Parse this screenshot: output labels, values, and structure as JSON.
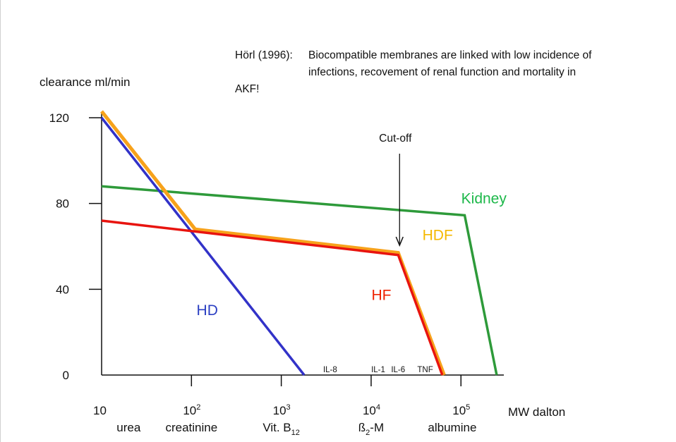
{
  "chart_data": {
    "type": "line",
    "ylabel": "clearance ml/min",
    "xlabel": "MW dalton",
    "annotation": {
      "line1_lead": "Hörl (1996):",
      "line1_text": "Biocompatible membranes are linked with low incidence of",
      "line2_text": "infections, recovement of renal function and mortality in",
      "line3_text": "AKF!"
    },
    "cutoff_label": "Cut-off",
    "x_scale": "log",
    "xlim": [
      10,
      300000
    ],
    "ylim": [
      0,
      120
    ],
    "y_ticks": [
      {
        "value": 120,
        "label": "120"
      },
      {
        "value": 80,
        "label": "80"
      },
      {
        "value": 40,
        "label": "40"
      },
      {
        "value": 0,
        "label": "0"
      }
    ],
    "x_ticks": [
      {
        "value": 10,
        "base": "10",
        "exp": ""
      },
      {
        "value": 100,
        "base": "10",
        "exp": "2"
      },
      {
        "value": 1000,
        "base": "10",
        "exp": "3"
      },
      {
        "value": 10000,
        "base": "10",
        "exp": "4"
      },
      {
        "value": 100000,
        "base": "10",
        "exp": "5"
      }
    ],
    "molecules": [
      {
        "x": 20,
        "label": "urea",
        "sub": "",
        "suffix": ""
      },
      {
        "x": 100,
        "label": "creatinine",
        "sub": "",
        "suffix": ""
      },
      {
        "x": 1000,
        "label": "Vit. B",
        "sub": "12",
        "suffix": ""
      },
      {
        "x": 10000,
        "label": "ß",
        "sub": "2",
        "suffix": "-M"
      },
      {
        "x": 80000,
        "label": "albumine",
        "sub": "",
        "suffix": ""
      }
    ],
    "cytokines": [
      {
        "x": 3500,
        "label": "IL-8"
      },
      {
        "x": 12000,
        "label": "IL-1"
      },
      {
        "x": 20000,
        "label": "IL-6"
      },
      {
        "x": 40000,
        "label": "TNF"
      }
    ],
    "series": [
      {
        "name": "Kidney",
        "color": "#2e9a3a",
        "label_color": "#1db84a",
        "label_pos": {
          "x": 180000,
          "y": 80
        },
        "points": [
          [
            10,
            88
          ],
          [
            110000,
            74.5
          ],
          [
            250000,
            0
          ]
        ]
      },
      {
        "name": "HDF",
        "color": "#f7a21b",
        "label_color": "#f5b800",
        "label_pos": {
          "x": 55000,
          "y": 63
        },
        "points": [
          [
            10,
            123
          ],
          [
            110,
            68
          ],
          [
            20000,
            57
          ],
          [
            65000,
            0
          ]
        ]
      },
      {
        "name": "HF",
        "color": "#e8140f",
        "label_color": "#ee2200",
        "label_pos": {
          "x": 13000,
          "y": 35
        },
        "points": [
          [
            10,
            72
          ],
          [
            20000,
            56
          ],
          [
            62000,
            0
          ]
        ]
      },
      {
        "name": "HD",
        "color": "#3232c8",
        "label_color": "#2b3fc2",
        "label_pos": {
          "x": 150,
          "y": 28
        },
        "points": [
          [
            10,
            120
          ],
          [
            1800,
            0
          ]
        ]
      }
    ]
  }
}
